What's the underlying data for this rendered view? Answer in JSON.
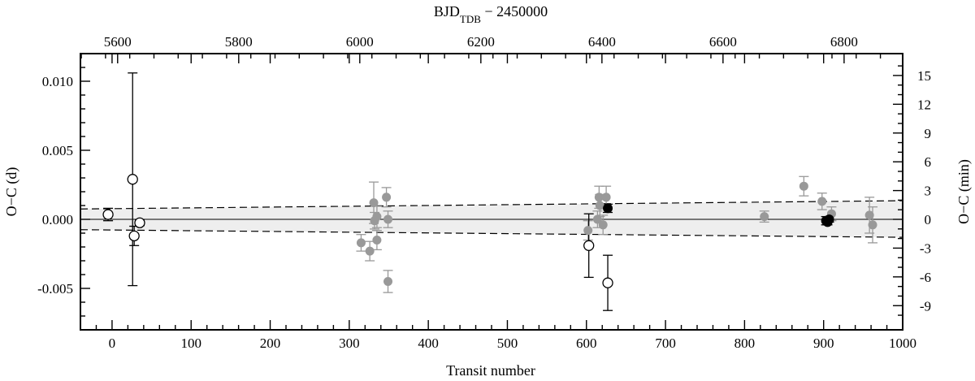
{
  "chart_data": {
    "type": "scatter",
    "title": "",
    "xlabel": "Transit number",
    "ylabel": "O−C (d)",
    "top_xlabel_main": "BJD",
    "top_xlabel_sub": "TDB",
    "top_xlabel_rest": " − 2450000",
    "right_ylabel": "O−C (min)",
    "xlim": [
      -40,
      1000
    ],
    "ylim": [
      -0.008,
      0.012
    ],
    "x_ticks": [
      0,
      100,
      200,
      300,
      400,
      500,
      600,
      700,
      800,
      900,
      1000
    ],
    "x_tick_labels": [
      "0",
      "100",
      "200",
      "300",
      "400",
      "500",
      "600",
      "700",
      "800",
      "900",
      "1000"
    ],
    "y_ticks": [
      -0.005,
      0.0,
      0.005,
      0.01
    ],
    "y_tick_labels": [
      "-0.005",
      "0.000",
      "0.005",
      "0.010"
    ],
    "top_ticks_bjd": [
      5600,
      5800,
      6000,
      6200,
      6400,
      6600,
      6800
    ],
    "top_tick_labels": [
      "5600",
      "5800",
      "6000",
      "6200",
      "6400",
      "6600",
      "6800"
    ],
    "bjd_to_transit": {
      "bjd_at_epoch0": 5590.8,
      "days_per_transit": 1.306
    },
    "right_ticks_min": [
      -9,
      -6,
      -3,
      0,
      3,
      6,
      9,
      12,
      15
    ],
    "right_tick_labels": [
      "-9",
      "-6",
      "-3",
      "0",
      "3",
      "6",
      "9",
      "12",
      "15"
    ],
    "ephemeris_band": {
      "x": [
        -40,
        1000
      ],
      "upper": [
        0.00075,
        0.00135
      ],
      "lower": [
        -0.00075,
        -0.0013
      ]
    },
    "grid": false,
    "legend": "none",
    "colors": {
      "open_edge": "#000000",
      "open_fill": "#ffffff",
      "gray": "#999999",
      "black": "#000000",
      "band": "#eeeeee"
    },
    "series": [
      {
        "style": "open",
        "points": [
          {
            "x": -5,
            "y": 0.00035,
            "err": 0.00045
          },
          {
            "x": 26,
            "y": 0.0029,
            "err": 0.0077
          },
          {
            "x": 28,
            "y": -0.0012,
            "err": 0.0007
          },
          {
            "x": 35,
            "y": -0.00025,
            "err": 0.0002
          },
          {
            "x": 603,
            "y": -0.0019,
            "err": 0.0023
          },
          {
            "x": 627,
            "y": -0.0046,
            "err": 0.002
          }
        ]
      },
      {
        "style": "gray",
        "points": [
          {
            "x": 315,
            "y": -0.0017,
            "err": 0.0006
          },
          {
            "x": 326,
            "y": -0.0023,
            "err": 0.0007
          },
          {
            "x": 331,
            "y": 0.0012,
            "err": 0.0015
          },
          {
            "x": 332,
            "y": -0.0001,
            "err": 0.0006
          },
          {
            "x": 335,
            "y": 0.0002,
            "err": 0.0008
          },
          {
            "x": 335,
            "y": -0.0015,
            "err": 0.0007
          },
          {
            "x": 347,
            "y": 0.0016,
            "err": 0.0007
          },
          {
            "x": 349,
            "y": 0.0,
            "err": 0.0006
          },
          {
            "x": 349,
            "y": -0.0045,
            "err": 0.0008
          },
          {
            "x": 602,
            "y": -0.0008,
            "err": 0.0007
          },
          {
            "x": 614,
            "y": 0.0,
            "err": 0.0006
          },
          {
            "x": 616,
            "y": 0.0016,
            "err": 0.0008
          },
          {
            "x": 617,
            "y": 0.001,
            "err": 0.0008
          },
          {
            "x": 621,
            "y": -0.0004,
            "err": 0.0007
          },
          {
            "x": 625,
            "y": 0.0016,
            "err": 0.0008
          },
          {
            "x": 825,
            "y": 0.0002,
            "err": 0.0004
          },
          {
            "x": 875,
            "y": 0.0024,
            "err": 0.0007
          },
          {
            "x": 898,
            "y": 0.0013,
            "err": 0.0006
          },
          {
            "x": 910,
            "y": 0.0004,
            "err": 0.0005
          },
          {
            "x": 958,
            "y": 0.0003,
            "err": 0.0013
          },
          {
            "x": 962,
            "y": -0.0004,
            "err": 0.0013
          }
        ]
      },
      {
        "style": "black",
        "points": [
          {
            "x": 627,
            "y": 0.0008,
            "err": 0.0003
          },
          {
            "x": 903,
            "y": -0.0001,
            "err": 0.0003
          },
          {
            "x": 905,
            "y": -0.0002,
            "err": 0.0002
          },
          {
            "x": 907,
            "y": 0.0,
            "err": 0.0002
          }
        ]
      }
    ]
  }
}
